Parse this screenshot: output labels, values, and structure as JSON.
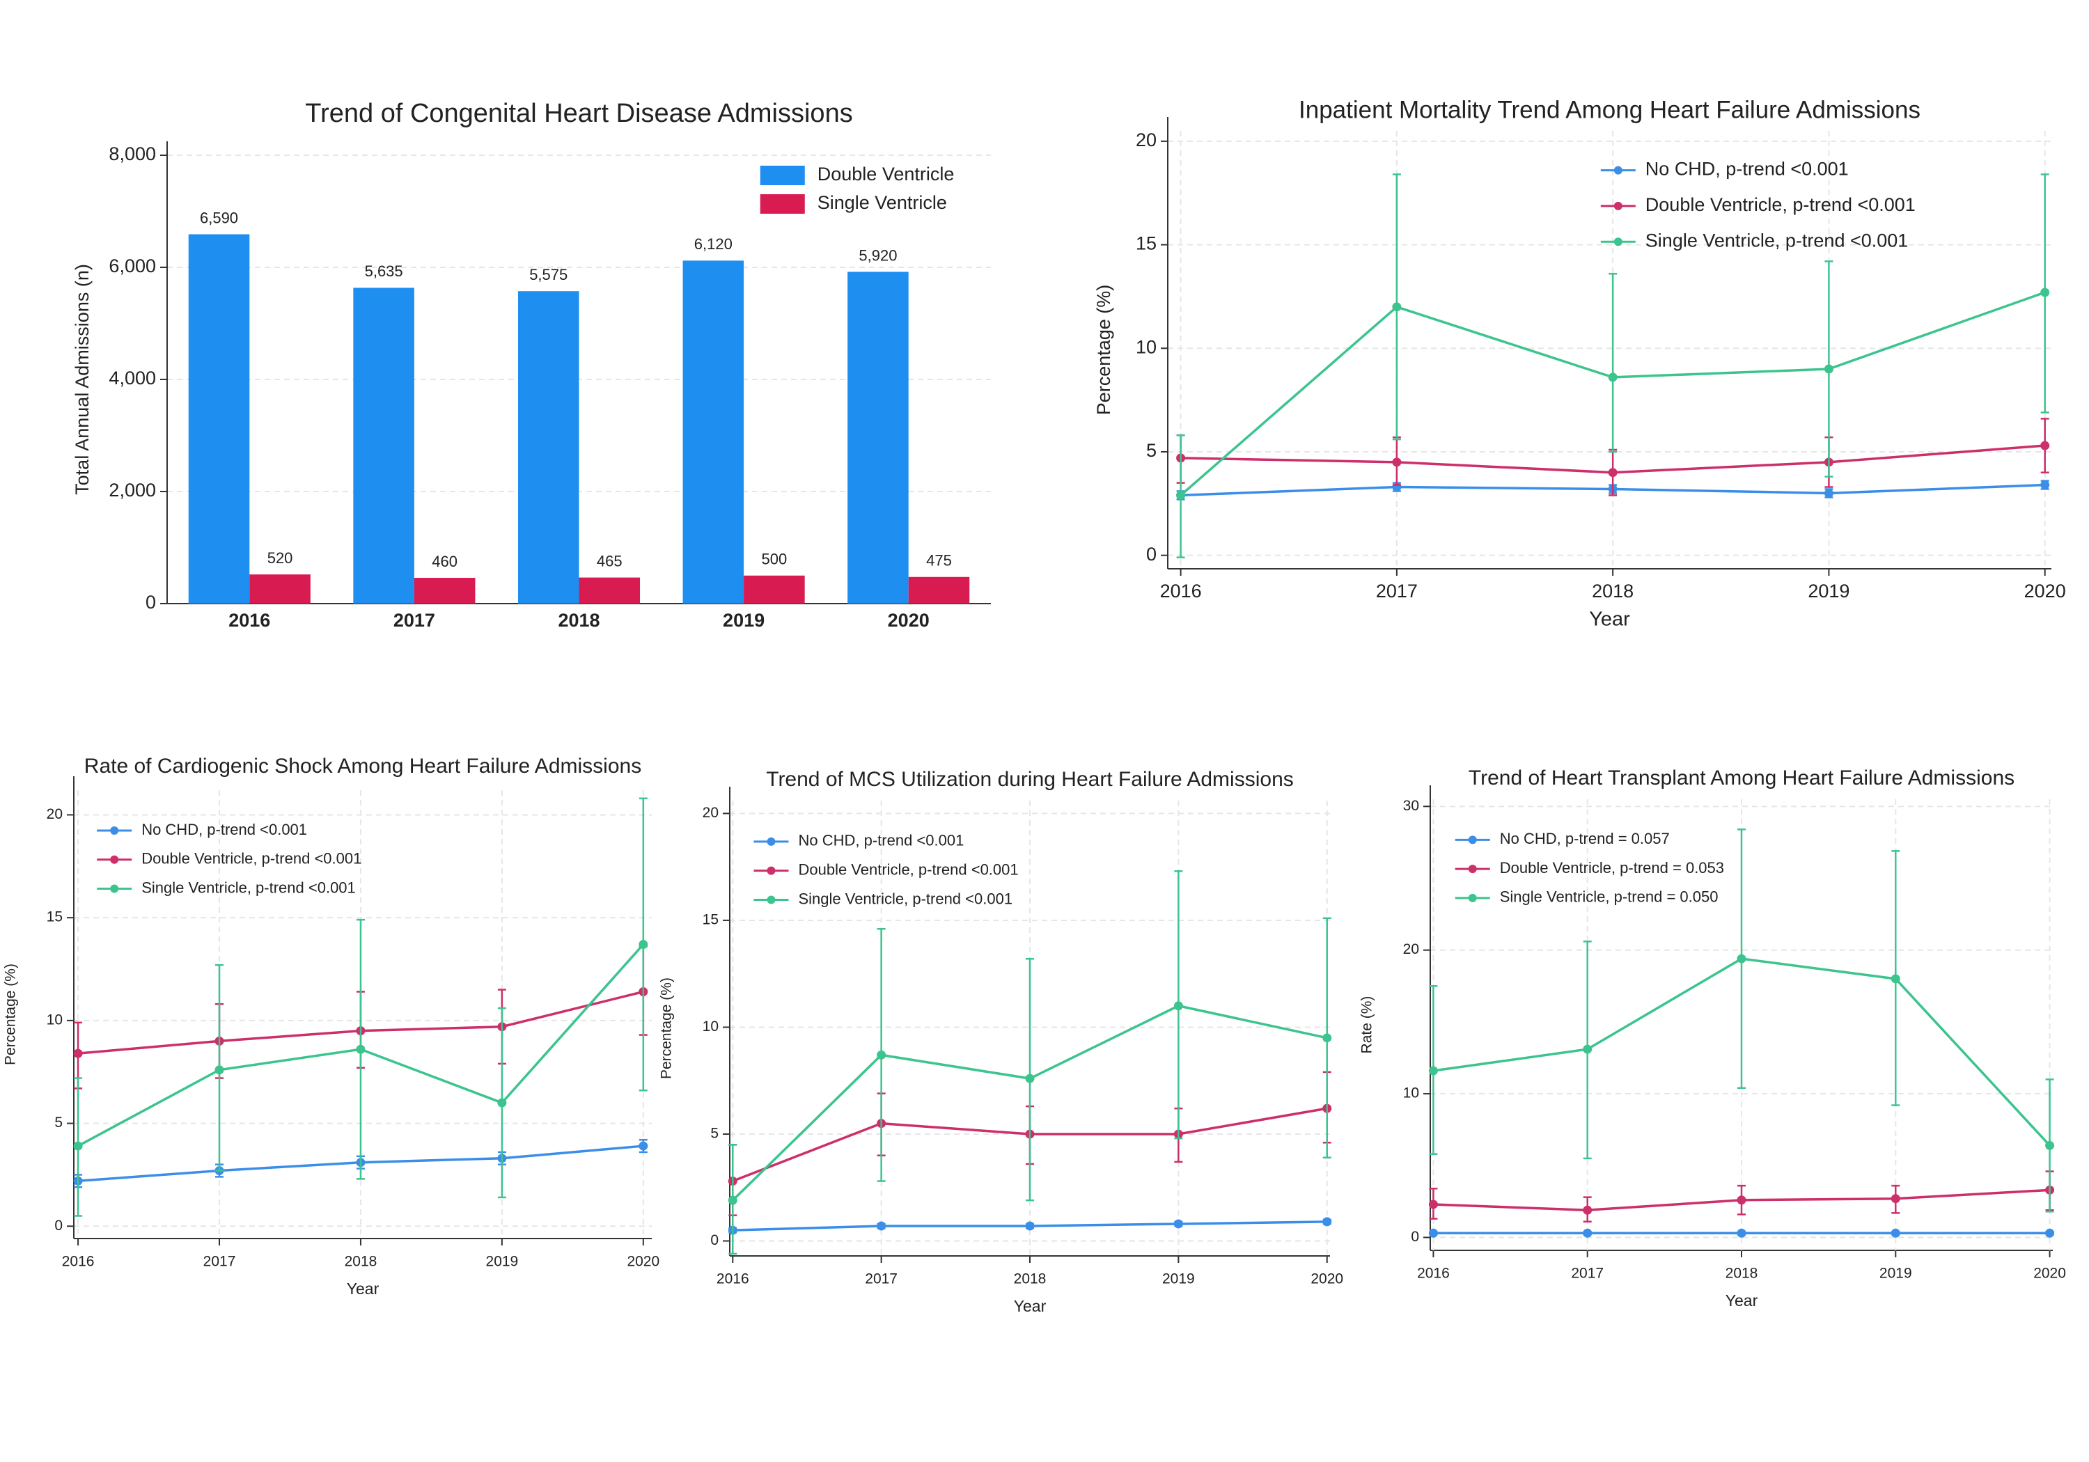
{
  "chart_data": [
    {
      "type": "bar",
      "title": "Trend of Congenital Heart Disease Admissions",
      "categories": [
        "2016",
        "2017",
        "2018",
        "2019",
        "2020"
      ],
      "ylabel": "Total Annual Admissions (n)",
      "ylim": [
        0,
        8000
      ],
      "yticks": [
        0,
        {
          "value": 2000,
          "label": "2,000"
        },
        {
          "value": 4000,
          "label": "4,000"
        },
        {
          "value": 6000,
          "label": "6,000"
        },
        {
          "value": 8000,
          "label": "8,000"
        }
      ],
      "grid": true,
      "legend": "upper right",
      "series": [
        {
          "name": "Double Ventricle",
          "color": "#1f8ef1",
          "values": [
            6590,
            5635,
            5575,
            6120,
            5920
          ],
          "value_labels": [
            "6,590",
            "5,635",
            "5,575",
            "6,120",
            "5,920"
          ]
        },
        {
          "name": "Single Ventricle",
          "color": "#d81b50",
          "values": [
            520,
            460,
            465,
            500,
            475
          ]
        }
      ]
    },
    {
      "type": "line",
      "title": "Inpatient Mortality Trend Among Heart Failure Admissions",
      "x": [
        2016,
        2017,
        2018,
        2019,
        2020
      ],
      "xlim": [
        2015.94,
        2020.03
      ],
      "xticks": [
        2016,
        2017,
        2018,
        2019,
        2020
      ],
      "ylim": [
        -0.65,
        20.5
      ],
      "yticks": [
        0,
        5,
        10,
        15,
        20
      ],
      "xlabel": "Year",
      "ylabel": "Percentage (%)",
      "grid": true,
      "legend": "upper right",
      "series": [
        {
          "name": "No CHD, p-trend <0.001",
          "color": "#3b8ee8",
          "values": [
            2.9,
            3.3,
            3.2,
            3.0,
            3.4
          ],
          "lower": [
            2.7,
            3.1,
            3.0,
            2.8,
            3.2
          ],
          "upper": [
            3.1,
            3.5,
            3.4,
            3.2,
            3.6
          ]
        },
        {
          "name": "Double Ventricle, p-trend <0.001",
          "color": "#cc2f6a",
          "values": [
            4.7,
            4.5,
            4.0,
            4.5,
            5.3
          ],
          "lower": [
            3.5,
            3.4,
            2.9,
            3.3,
            4.0
          ],
          "upper": [
            5.8,
            5.7,
            5.1,
            5.7,
            6.6
          ]
        },
        {
          "name": "Single Ventricle, p-trend <0.001",
          "color": "#3cc48f",
          "values": [
            2.9,
            12.0,
            8.6,
            9.0,
            12.7
          ],
          "lower": [
            -0.1,
            5.6,
            5.0,
            3.8,
            6.9
          ],
          "upper": [
            5.8,
            18.4,
            13.6,
            14.2,
            18.4
          ]
        }
      ]
    },
    {
      "type": "line",
      "title": "Rate of Cardiogenic Shock Among Heart Failure Admissions",
      "x": [
        2016,
        2017,
        2018,
        2019,
        2020
      ],
      "xlim": [
        2015.97,
        2020.06
      ],
      "xticks": [
        2016,
        2017,
        2018,
        2019,
        2020
      ],
      "ylim": [
        -0.6,
        21.2
      ],
      "yticks": [
        0,
        5,
        10,
        15,
        20
      ],
      "xlabel": "Year",
      "ylabel": "Percentage (%)",
      "grid": true,
      "legend": "upper left",
      "series": [
        {
          "name": "No CHD, p-trend <0.001",
          "color": "#3b8ee8",
          "values": [
            2.2,
            2.7,
            3.1,
            3.3,
            3.9
          ],
          "lower": [
            1.9,
            2.4,
            2.8,
            3.0,
            3.6
          ],
          "upper": [
            2.5,
            3.0,
            3.4,
            3.6,
            4.2
          ]
        },
        {
          "name": "Double Ventricle, p-trend <0.001",
          "color": "#cc2f6a",
          "values": [
            8.4,
            9.0,
            9.5,
            9.7,
            11.4
          ],
          "lower": [
            6.7,
            7.2,
            7.7,
            7.9,
            9.3
          ],
          "upper": [
            9.9,
            10.8,
            11.4,
            11.5,
            13.6
          ]
        },
        {
          "name": "Single Ventricle, p-trend <0.001",
          "color": "#3cc48f",
          "values": [
            3.9,
            7.6,
            8.6,
            6.0,
            13.7
          ],
          "lower": [
            0.5,
            2.7,
            2.3,
            1.4,
            6.6
          ],
          "upper": [
            7.2,
            12.7,
            14.9,
            10.6,
            20.8
          ]
        }
      ]
    },
    {
      "type": "line",
      "title": "Trend of MCS Utilization during Heart Failure Admissions",
      "x": [
        2016,
        2017,
        2018,
        2019,
        2020
      ],
      "xlim": [
        2015.98,
        2020.02
      ],
      "xticks": [
        2016,
        2017,
        2018,
        2019,
        2020
      ],
      "ylim": [
        -0.7,
        20.6
      ],
      "yticks": [
        0,
        5,
        10,
        15,
        20
      ],
      "xlabel": "Year",
      "ylabel": "Percentage (%)",
      "grid": true,
      "legend": "upper left",
      "series": [
        {
          "name": "No CHD, p-trend <0.001",
          "color": "#3b8ee8",
          "values": [
            0.5,
            0.7,
            0.7,
            0.8,
            0.9
          ],
          "lower": [
            0.4,
            0.6,
            0.6,
            0.7,
            0.8
          ],
          "upper": [
            0.6,
            0.8,
            0.8,
            0.9,
            1.0
          ]
        },
        {
          "name": "Double Ventricle, p-trend <0.001",
          "color": "#cc2f6a",
          "values": [
            2.8,
            5.5,
            5.0,
            5.0,
            6.2
          ],
          "lower": [
            1.2,
            4.0,
            3.6,
            3.7,
            4.6
          ],
          "upper": [
            4.5,
            6.9,
            6.3,
            6.2,
            7.9
          ]
        },
        {
          "name": "Single Ventricle, p-trend <0.001",
          "color": "#3cc48f",
          "values": [
            1.9,
            8.7,
            7.6,
            11.0,
            9.5
          ],
          "lower": [
            -0.6,
            2.8,
            1.9,
            4.8,
            3.9
          ],
          "upper": [
            4.5,
            14.6,
            13.2,
            17.3,
            15.1
          ]
        }
      ]
    },
    {
      "type": "line",
      "title": "Trend of Heart Transplant Among Heart Failure Admissions",
      "x": [
        2016,
        2017,
        2018,
        2019,
        2020
      ],
      "xlim": [
        2015.98,
        2020.02
      ],
      "xticks": [
        2016,
        2017,
        2018,
        2019,
        2020
      ],
      "ylim": [
        -0.9,
        30.5
      ],
      "yticks": [
        0,
        10,
        20,
        30
      ],
      "xlabel": "Year",
      "ylabel": "Rate (%)",
      "grid": true,
      "legend": "upper left",
      "series": [
        {
          "name": "No CHD, p-trend = 0.057",
          "color": "#3b8ee8",
          "values": [
            0.3,
            0.3,
            0.3,
            0.3,
            0.3
          ],
          "lower": [
            0.2,
            0.2,
            0.2,
            0.2,
            0.2
          ],
          "upper": [
            0.4,
            0.4,
            0.4,
            0.4,
            0.4
          ]
        },
        {
          "name": "Double Ventricle, p-trend = 0.053",
          "color": "#cc2f6a",
          "values": [
            2.3,
            1.9,
            2.6,
            2.7,
            3.3
          ],
          "lower": [
            1.3,
            1.1,
            1.6,
            1.7,
            1.9
          ],
          "upper": [
            3.4,
            2.8,
            3.6,
            3.6,
            4.6
          ]
        },
        {
          "name": "Single Ventricle, p-trend = 0.050",
          "color": "#3cc48f",
          "values": [
            11.6,
            13.1,
            19.4,
            18.0,
            6.4
          ],
          "lower": [
            5.8,
            5.5,
            10.4,
            9.2,
            1.8
          ],
          "upper": [
            17.5,
            20.6,
            28.4,
            26.9,
            11.0
          ]
        }
      ]
    }
  ]
}
